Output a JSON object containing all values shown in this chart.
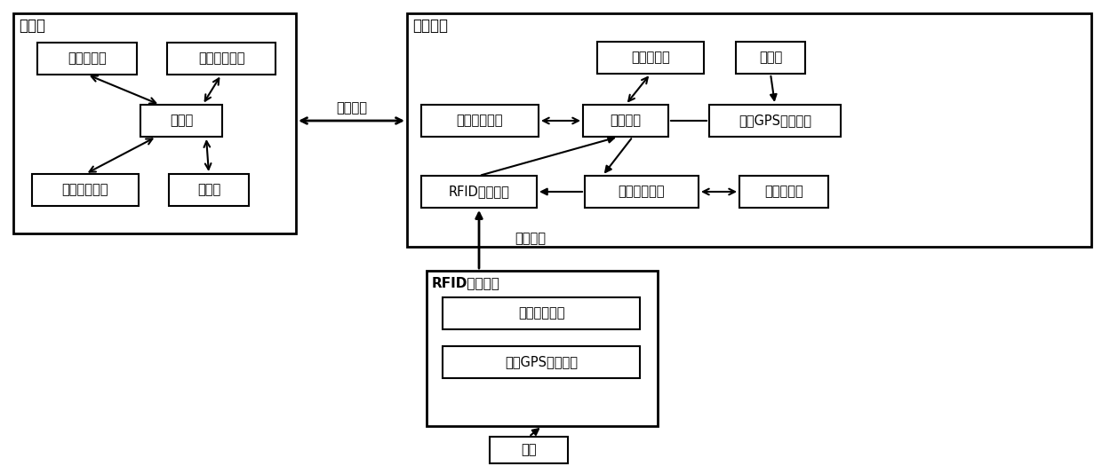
{
  "bg_color": "#ffffff",
  "font_size": 10.5,
  "server_label": "服务器",
  "mobile_label": "移动终端",
  "rfid_tag_label": "RFID电子标签",
  "wireless1_label": "无线连接",
  "wireless2_label": "无线连接",
  "asset_label": "资产",
  "boxes": {
    "first_storage": "第一存储器",
    "first_comm": "第一通信模块",
    "processor": "处理器",
    "data_proc": "数据处理模块",
    "database": "数据库",
    "second_storage": "第二存储器",
    "battery": "锂电池",
    "second_comm": "第二通信模块",
    "micro_proc": "微处理器",
    "first_gps": "第一GPS定位模块",
    "rfid_rw": "RFID读写模块",
    "tag_mgr": "标签管理模块",
    "indicator": "指示灯模块",
    "hf_comm": "高频通信模块",
    "second_gps": "第二GPS定位模块"
  }
}
